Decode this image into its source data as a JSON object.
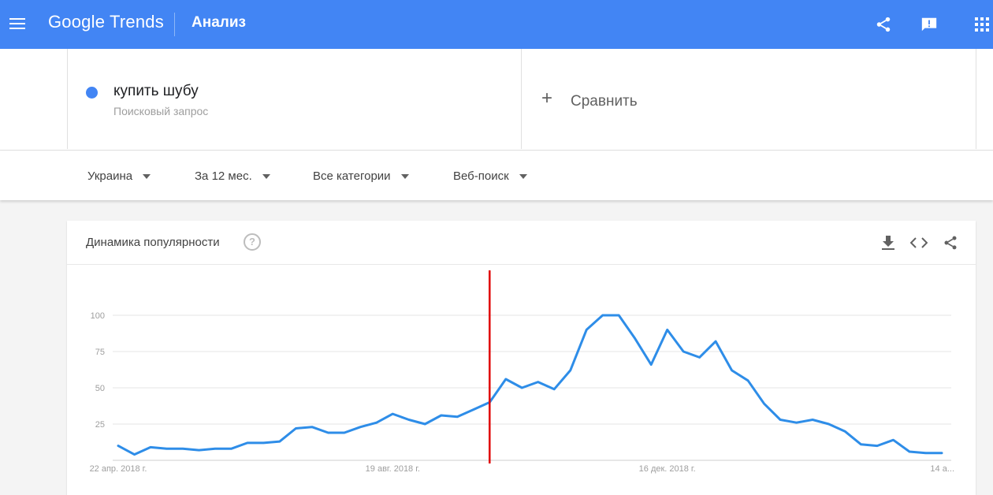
{
  "app": {
    "logo_text": "Google Trends",
    "page_title": "Анализ"
  },
  "topbar_icons": [
    "menu-icon",
    "share-icon",
    "feedback-icon",
    "apps-grid-icon"
  ],
  "search_term": {
    "name": "купить шубу",
    "type": "Поисковый запрос",
    "color": "#4285f4"
  },
  "compare": {
    "plus": "+",
    "label": "Сравнить"
  },
  "filters": [
    {
      "label": "Украина"
    },
    {
      "label": "За 12 мес."
    },
    {
      "label": "Все категории"
    },
    {
      "label": "Веб-поиск"
    }
  ],
  "chart_card": {
    "title": "Динамика популярности",
    "help_symbol": "?",
    "icons": [
      "download-icon",
      "embed-code-icon",
      "share-icon"
    ]
  },
  "chart_data": {
    "type": "line",
    "title": "",
    "xlabel": "",
    "ylabel": "",
    "ylim": [
      0,
      100
    ],
    "yticks": [
      25,
      50,
      75,
      100
    ],
    "x_tick_labels": [
      "22 апр. 2018 г.",
      "19 авг. 2018 г.",
      "16 дек. 2018 г.",
      "14 а..."
    ],
    "x_tick_index": [
      0,
      17,
      34,
      51
    ],
    "grid": true,
    "series": [
      {
        "color": "#2e8de8",
        "values": [
          10,
          4,
          9,
          8,
          8,
          7,
          8,
          8,
          12,
          12,
          13,
          22,
          23,
          19,
          19,
          23,
          26,
          32,
          28,
          25,
          31,
          30,
          35,
          40,
          56,
          50,
          54,
          49,
          62,
          90,
          100,
          100,
          84,
          66,
          90,
          75,
          71,
          82,
          62,
          55,
          39,
          28,
          26,
          28,
          25,
          20,
          11,
          10,
          14,
          6,
          5,
          5
        ]
      }
    ],
    "marker_line": {
      "color": "#e00000",
      "x_index": 23
    }
  }
}
